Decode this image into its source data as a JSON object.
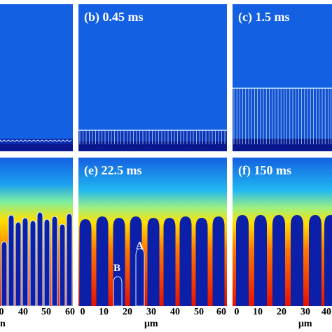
{
  "panels": {
    "a": {
      "label": ""
    },
    "b": {
      "label": "(b) 0.45 ms"
    },
    "c": {
      "label": "(c) 1.5 ms"
    },
    "d": {
      "label": ""
    },
    "e": {
      "label": "(e) 22.5 ms"
    },
    "f": {
      "label": "(f) 150 ms"
    }
  },
  "axis": {
    "ticks_d": [
      "0",
      "40",
      "50",
      "60"
    ],
    "ticks_e": [
      "0",
      "10",
      "20",
      "30",
      "40",
      "50",
      "60"
    ],
    "ticks_f": [
      "0",
      "10",
      "20",
      "30",
      "40"
    ],
    "unit_e": "μm",
    "unit_f": "μm",
    "unit_left": "n"
  },
  "markers": {
    "a": "A",
    "b": "B"
  },
  "colors": {
    "background": "#1560e0",
    "cell": "#0c1fa8",
    "liquid_hot": "#ff2a00",
    "liquid_warm": "#ffd400",
    "outline": "#d0f2ff"
  }
}
